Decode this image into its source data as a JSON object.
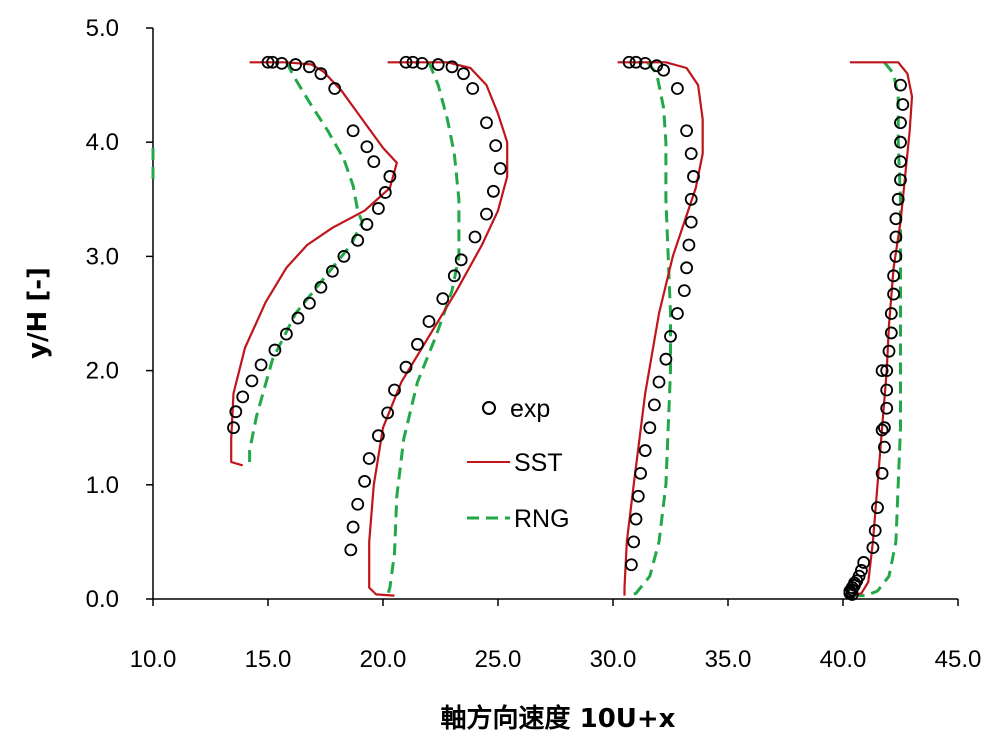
{
  "chart_data": {
    "type": "scatter",
    "title": "",
    "xlabel": "軸方向速度 10U+x",
    "ylabel": "y/H [-]",
    "xlim": [
      10.0,
      45.0
    ],
    "ylim": [
      0.0,
      5.0
    ],
    "xticks": [
      "10.0",
      "15.0",
      "20.0",
      "25.0",
      "30.0",
      "35.0",
      "40.0",
      "45.0"
    ],
    "yticks": [
      "0.0",
      "1.0",
      "2.0",
      "3.0",
      "4.0",
      "5.0"
    ],
    "grid": false,
    "legend_position": "center",
    "colors": {
      "exp": "#000000",
      "SST": "#c0151b",
      "RNG": "#22a848"
    },
    "legend": [
      "exp",
      "SST",
      "RNG"
    ],
    "series": [
      {
        "name": "exp",
        "style": "open-circle",
        "profile": "x=10",
        "points": [
          [
            15.0,
            4.7
          ],
          [
            15.2,
            4.7
          ],
          [
            15.6,
            4.69
          ],
          [
            16.2,
            4.68
          ],
          [
            16.8,
            4.66
          ],
          [
            17.3,
            4.6
          ],
          [
            17.9,
            4.47
          ],
          [
            18.7,
            4.1
          ],
          [
            19.3,
            3.96
          ],
          [
            19.6,
            3.83
          ],
          [
            20.3,
            3.7
          ],
          [
            20.1,
            3.56
          ],
          [
            19.8,
            3.42
          ],
          [
            19.3,
            3.28
          ],
          [
            18.9,
            3.14
          ],
          [
            18.3,
            3.0
          ],
          [
            17.8,
            2.87
          ],
          [
            17.3,
            2.73
          ],
          [
            16.8,
            2.59
          ],
          [
            16.3,
            2.46
          ],
          [
            15.8,
            2.32
          ],
          [
            15.3,
            2.18
          ],
          [
            14.7,
            2.05
          ],
          [
            14.3,
            1.91
          ],
          [
            13.9,
            1.77
          ],
          [
            13.6,
            1.64
          ],
          [
            13.5,
            1.5
          ]
        ]
      },
      {
        "name": "SST",
        "style": "line",
        "profile": "x=10",
        "points": [
          [
            14.2,
            4.7
          ],
          [
            15.8,
            4.7
          ],
          [
            16.9,
            4.68
          ],
          [
            17.4,
            4.62
          ],
          [
            18.2,
            4.45
          ],
          [
            19.1,
            4.2
          ],
          [
            20.0,
            3.95
          ],
          [
            20.6,
            3.82
          ],
          [
            20.3,
            3.6
          ],
          [
            19.2,
            3.4
          ],
          [
            17.8,
            3.25
          ],
          [
            16.7,
            3.1
          ],
          [
            15.8,
            2.9
          ],
          [
            14.9,
            2.6
          ],
          [
            14.0,
            2.2
          ],
          [
            13.5,
            1.8
          ],
          [
            13.4,
            1.4
          ],
          [
            13.4,
            1.2
          ],
          [
            13.9,
            1.17
          ]
        ]
      },
      {
        "name": "RNG",
        "style": "dashed",
        "profile": "x=10",
        "points": [
          [
            15.8,
            4.7
          ],
          [
            16.2,
            4.55
          ],
          [
            16.8,
            4.35
          ],
          [
            17.6,
            4.1
          ],
          [
            18.3,
            3.85
          ],
          [
            18.7,
            3.62
          ],
          [
            18.9,
            3.4
          ],
          [
            19.1,
            3.3
          ],
          [
            18.6,
            3.1
          ],
          [
            17.4,
            2.8
          ],
          [
            16.2,
            2.5
          ],
          [
            15.2,
            2.1
          ],
          [
            14.5,
            1.6
          ],
          [
            14.2,
            1.3
          ],
          [
            14.2,
            1.15
          ]
        ]
      },
      {
        "name": "RNG",
        "style": "dashed",
        "profile": "edge",
        "points": [
          [
            10.0,
            3.95
          ],
          [
            10.0,
            3.65
          ]
        ]
      },
      {
        "name": "exp",
        "style": "open-circle",
        "profile": "x=20",
        "points": [
          [
            21.0,
            4.7
          ],
          [
            21.3,
            4.7
          ],
          [
            21.7,
            4.69
          ],
          [
            22.4,
            4.68
          ],
          [
            23.0,
            4.66
          ],
          [
            23.5,
            4.6
          ],
          [
            23.9,
            4.47
          ],
          [
            24.5,
            4.17
          ],
          [
            24.9,
            3.97
          ],
          [
            25.1,
            3.77
          ],
          [
            24.8,
            3.57
          ],
          [
            24.5,
            3.37
          ],
          [
            24.0,
            3.17
          ],
          [
            23.4,
            2.97
          ],
          [
            23.1,
            2.83
          ],
          [
            22.6,
            2.63
          ],
          [
            22.0,
            2.43
          ],
          [
            21.5,
            2.23
          ],
          [
            21.0,
            2.03
          ],
          [
            20.5,
            1.83
          ],
          [
            20.2,
            1.63
          ],
          [
            19.8,
            1.43
          ],
          [
            19.4,
            1.23
          ],
          [
            19.2,
            1.03
          ],
          [
            18.9,
            0.83
          ],
          [
            18.7,
            0.63
          ],
          [
            18.6,
            0.43
          ]
        ]
      },
      {
        "name": "SST",
        "style": "line",
        "profile": "x=20",
        "points": [
          [
            20.2,
            4.7
          ],
          [
            22.8,
            4.7
          ],
          [
            23.8,
            4.65
          ],
          [
            24.5,
            4.5
          ],
          [
            25.0,
            4.25
          ],
          [
            25.4,
            4.0
          ],
          [
            25.4,
            3.7
          ],
          [
            25.0,
            3.4
          ],
          [
            24.3,
            3.1
          ],
          [
            23.2,
            2.7
          ],
          [
            22.0,
            2.3
          ],
          [
            20.8,
            1.9
          ],
          [
            20.0,
            1.5
          ],
          [
            19.6,
            1.0
          ],
          [
            19.4,
            0.5
          ],
          [
            19.4,
            0.1
          ],
          [
            19.7,
            0.04
          ],
          [
            20.5,
            0.03
          ]
        ]
      },
      {
        "name": "RNG",
        "style": "dashed",
        "profile": "x=20",
        "points": [
          [
            22.0,
            4.7
          ],
          [
            22.4,
            4.5
          ],
          [
            22.8,
            4.2
          ],
          [
            23.1,
            3.9
          ],
          [
            23.3,
            3.5
          ],
          [
            23.3,
            3.0
          ],
          [
            23.0,
            2.7
          ],
          [
            22.3,
            2.3
          ],
          [
            21.5,
            1.9
          ],
          [
            20.9,
            1.4
          ],
          [
            20.6,
            0.9
          ],
          [
            20.5,
            0.4
          ],
          [
            20.3,
            0.1
          ],
          [
            20.2,
            0.03
          ]
        ]
      },
      {
        "name": "exp",
        "style": "open-circle",
        "profile": "x=30",
        "points": [
          [
            30.7,
            4.7
          ],
          [
            31.0,
            4.7
          ],
          [
            31.4,
            4.69
          ],
          [
            31.9,
            4.67
          ],
          [
            32.2,
            4.63
          ],
          [
            32.8,
            4.47
          ],
          [
            33.2,
            4.1
          ],
          [
            33.4,
            3.9
          ],
          [
            33.5,
            3.7
          ],
          [
            33.4,
            3.5
          ],
          [
            33.4,
            3.3
          ],
          [
            33.3,
            3.1
          ],
          [
            33.2,
            2.9
          ],
          [
            33.1,
            2.7
          ],
          [
            32.8,
            2.5
          ],
          [
            32.5,
            2.3
          ],
          [
            32.3,
            2.1
          ],
          [
            32.0,
            1.9
          ],
          [
            31.8,
            1.7
          ],
          [
            31.6,
            1.5
          ],
          [
            31.4,
            1.3
          ],
          [
            31.2,
            1.1
          ],
          [
            31.1,
            0.9
          ],
          [
            31.0,
            0.7
          ],
          [
            30.9,
            0.5
          ],
          [
            30.8,
            0.3
          ]
        ]
      },
      {
        "name": "SST",
        "style": "line",
        "profile": "x=30",
        "points": [
          [
            30.2,
            4.7
          ],
          [
            32.3,
            4.7
          ],
          [
            33.2,
            4.65
          ],
          [
            33.7,
            4.5
          ],
          [
            33.9,
            4.2
          ],
          [
            33.9,
            3.9
          ],
          [
            33.6,
            3.6
          ],
          [
            33.1,
            3.3
          ],
          [
            32.6,
            3.0
          ],
          [
            32.0,
            2.5
          ],
          [
            31.4,
            1.8
          ],
          [
            30.9,
            1.0
          ],
          [
            30.6,
            0.5
          ],
          [
            30.5,
            0.1
          ],
          [
            30.5,
            0.03
          ]
        ]
      },
      {
        "name": "RNG",
        "style": "dashed",
        "profile": "x=30",
        "points": [
          [
            31.5,
            4.7
          ],
          [
            31.9,
            4.6
          ],
          [
            32.2,
            4.3
          ],
          [
            32.3,
            4.0
          ],
          [
            32.3,
            3.5
          ],
          [
            32.4,
            3.0
          ],
          [
            32.5,
            2.5
          ],
          [
            32.5,
            2.0
          ],
          [
            32.4,
            1.5
          ],
          [
            32.3,
            1.0
          ],
          [
            32.0,
            0.5
          ],
          [
            31.6,
            0.2
          ],
          [
            31.0,
            0.05
          ],
          [
            30.7,
            0.03
          ]
        ]
      },
      {
        "name": "exp",
        "style": "open-circle",
        "profile": "x=40",
        "points": [
          [
            42.5,
            4.5
          ],
          [
            42.6,
            4.33
          ],
          [
            42.5,
            4.17
          ],
          [
            42.5,
            4.0
          ],
          [
            42.5,
            3.83
          ],
          [
            42.5,
            3.67
          ],
          [
            42.4,
            3.5
          ],
          [
            42.3,
            3.33
          ],
          [
            42.3,
            3.17
          ],
          [
            42.3,
            3.0
          ],
          [
            42.2,
            2.83
          ],
          [
            42.2,
            2.67
          ],
          [
            42.1,
            2.5
          ],
          [
            42.1,
            2.33
          ],
          [
            42.0,
            2.17
          ],
          [
            41.9,
            2.0
          ],
          [
            41.7,
            2.0
          ],
          [
            41.9,
            1.83
          ],
          [
            41.9,
            1.67
          ],
          [
            41.8,
            1.5
          ],
          [
            41.7,
            1.48
          ],
          [
            41.8,
            1.33
          ],
          [
            41.7,
            1.1
          ],
          [
            41.5,
            0.8
          ],
          [
            41.4,
            0.6
          ],
          [
            41.3,
            0.45
          ],
          [
            40.9,
            0.32
          ],
          [
            40.8,
            0.25
          ],
          [
            40.7,
            0.2
          ],
          [
            40.6,
            0.16
          ],
          [
            40.5,
            0.14
          ],
          [
            40.5,
            0.12
          ],
          [
            40.4,
            0.1
          ],
          [
            40.4,
            0.08
          ],
          [
            40.3,
            0.07
          ],
          [
            40.3,
            0.06
          ],
          [
            40.3,
            0.05
          ],
          [
            40.4,
            0.04
          ]
        ]
      },
      {
        "name": "SST",
        "style": "line",
        "profile": "x=40",
        "points": [
          [
            40.3,
            4.7
          ],
          [
            42.4,
            4.7
          ],
          [
            42.8,
            4.6
          ],
          [
            43.0,
            4.4
          ],
          [
            42.9,
            4.1
          ],
          [
            42.7,
            3.7
          ],
          [
            42.5,
            3.3
          ],
          [
            42.2,
            2.9
          ],
          [
            42.0,
            2.4
          ],
          [
            41.9,
            2.0
          ],
          [
            41.7,
            1.5
          ],
          [
            41.5,
            1.0
          ],
          [
            41.3,
            0.5
          ],
          [
            41.1,
            0.15
          ],
          [
            40.8,
            0.05
          ],
          [
            40.4,
            0.03
          ]
        ]
      },
      {
        "name": "RNG",
        "style": "dashed",
        "profile": "x=40",
        "points": [
          [
            41.8,
            4.7
          ],
          [
            42.2,
            4.6
          ],
          [
            42.4,
            4.4
          ],
          [
            42.4,
            4.0
          ],
          [
            42.5,
            3.5
          ],
          [
            42.5,
            3.0
          ],
          [
            42.5,
            2.5
          ],
          [
            42.5,
            2.0
          ],
          [
            42.5,
            1.5
          ],
          [
            42.4,
            1.0
          ],
          [
            42.3,
            0.5
          ],
          [
            42.0,
            0.2
          ],
          [
            41.5,
            0.07
          ],
          [
            41.0,
            0.03
          ],
          [
            40.6,
            0.03
          ]
        ]
      }
    ]
  }
}
